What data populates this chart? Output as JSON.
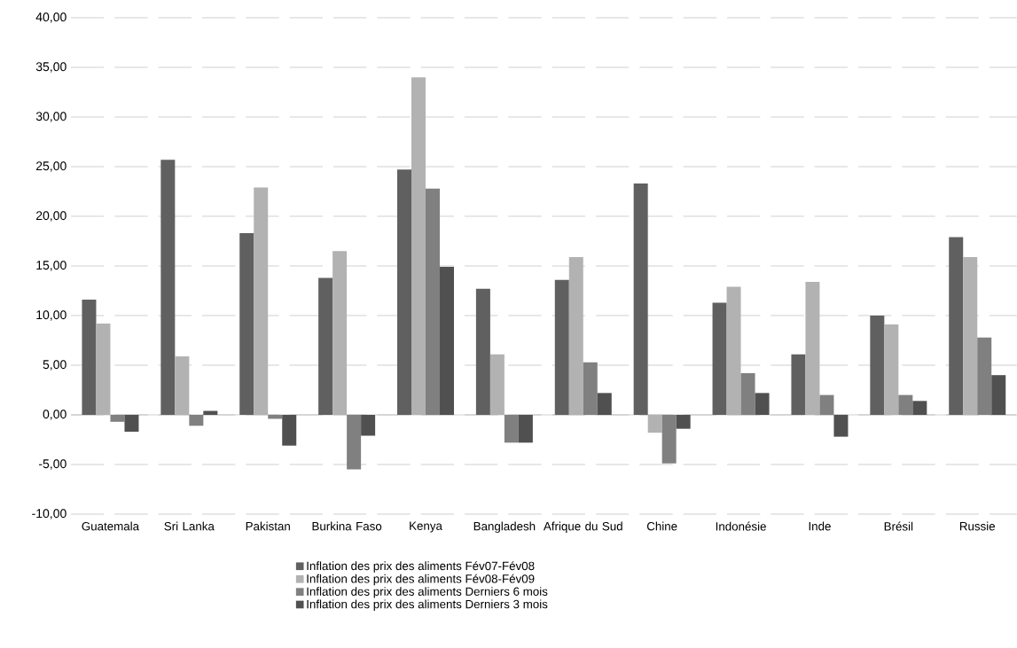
{
  "chart_data": {
    "type": "bar",
    "categories": [
      "Guatemala",
      "Sri Lanka",
      "Pakistan",
      "Burkina Faso",
      "Kenya",
      "Bangladesh",
      "Afrique du Sud",
      "Chine",
      "Indonésie",
      "Inde",
      "Brésil",
      "Russie"
    ],
    "series": [
      {
        "name": "Inflation des prix des aliments Fév07-Fév08",
        "color": "#606060",
        "values": [
          11.6,
          25.7,
          18.3,
          13.8,
          24.7,
          12.7,
          13.6,
          23.3,
          11.3,
          6.1,
          10.0,
          17.9
        ]
      },
      {
        "name": "Inflation des prix des aliments Fév08-Fév09",
        "color": "#b2b2b2",
        "values": [
          9.2,
          5.9,
          22.9,
          16.5,
          34.0,
          6.1,
          15.9,
          -1.8,
          12.9,
          13.4,
          9.1,
          15.9
        ]
      },
      {
        "name": "Inflation des prix des aliments Derniers 6 mois",
        "color": "#808080",
        "values": [
          -0.7,
          -1.1,
          -0.4,
          -5.5,
          22.8,
          -2.8,
          5.3,
          -4.9,
          4.2,
          2.0,
          2.0,
          7.8
        ]
      },
      {
        "name": "Inflation des prix des aliments Derniers 3 mois",
        "color": "#505050",
        "values": [
          -1.7,
          0.4,
          -3.1,
          -2.1,
          14.9,
          -2.8,
          2.2,
          -1.4,
          2.2,
          -2.2,
          1.4,
          4.0
        ]
      }
    ],
    "ylim": [
      -10,
      40
    ],
    "yticks": [
      {
        "value": -10,
        "label": "-10,00"
      },
      {
        "value": -5,
        "label": "-5,00"
      },
      {
        "value": 0,
        "label": "0,00"
      },
      {
        "value": 5,
        "label": "5,00"
      },
      {
        "value": 10,
        "label": "10,00"
      },
      {
        "value": 15,
        "label": "15,00"
      },
      {
        "value": 20,
        "label": "20,00"
      },
      {
        "value": 25,
        "label": "25,00"
      },
      {
        "value": 30,
        "label": "30,00"
      },
      {
        "value": 35,
        "label": "35,00"
      },
      {
        "value": 40,
        "label": "40,00"
      }
    ],
    "grid": "y",
    "legend": "bottom"
  }
}
